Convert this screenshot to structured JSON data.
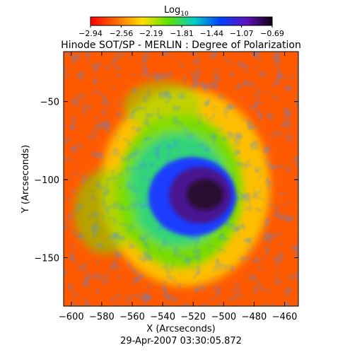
{
  "chart_data": {
    "type": "heatmap",
    "title": "Hinode SOT/SP - MERLIN : Degree of Polarization",
    "subtitle": "29-Apr-2007 03:30:05.872",
    "xlabel": "X (Arcseconds)",
    "ylabel": "Y (Arcseconds)",
    "xlim": [
      -605,
      -451
    ],
    "ylim": [
      -181,
      -18
    ],
    "x_ticks": [
      -600,
      -580,
      -560,
      -540,
      -520,
      -500,
      -480,
      -460
    ],
    "y_ticks": [
      -50,
      -100,
      -150
    ],
    "colorbar": {
      "label": "Log",
      "label_subscript": "10",
      "range": [
        -2.94,
        -0.69
      ],
      "ticks": [
        -2.94,
        -2.56,
        -2.19,
        -1.81,
        -1.44,
        -1.07,
        -0.69
      ],
      "colormap": [
        "#ff0000",
        "#ff6a00",
        "#ffe000",
        "#5ee000",
        "#00d0c8",
        "#0040ff",
        "#6010c0",
        "#100010"
      ]
    },
    "features": [
      {
        "kind": "sunspot-umbra",
        "center": [
          -520,
          -110
        ],
        "level": -0.75
      },
      {
        "kind": "sunspot-penumbra",
        "center": [
          -523,
          -108
        ],
        "level": -1.15
      },
      {
        "kind": "plage",
        "level": -1.9
      },
      {
        "kind": "quiet-sun",
        "level": -2.75
      }
    ]
  }
}
